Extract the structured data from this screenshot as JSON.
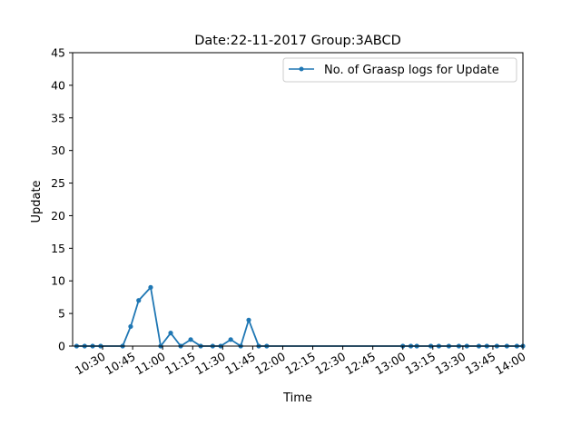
{
  "chart_data": {
    "type": "line",
    "title": "Date:22-11-2017  Group:3ABCD",
    "xlabel": "Time",
    "ylabel": "Update",
    "xlim": [
      "10:15",
      "14:00"
    ],
    "ylim": [
      0,
      45
    ],
    "yticks": [
      0,
      5,
      10,
      15,
      20,
      25,
      30,
      35,
      40,
      45
    ],
    "xticks": [
      "10:30",
      "10:45",
      "11:00",
      "11:15",
      "11:30",
      "11:45",
      "12:00",
      "12:15",
      "12:30",
      "12:45",
      "13:00",
      "13:15",
      "13:30",
      "13:45",
      "14:00"
    ],
    "legend": "top-right",
    "grid": false,
    "colors": {
      "series": "#1f77b4",
      "baseline": "#9b2d8f"
    },
    "series": [
      {
        "name": "No. of Graasp logs for Update",
        "x": [
          "10:17",
          "10:21",
          "10:25",
          "10:29",
          "10:40",
          "10:44",
          "10:48",
          "10:54",
          "10:59",
          "11:04",
          "11:09",
          "11:14",
          "11:19",
          "11:25",
          "11:29",
          "11:34",
          "11:39",
          "11:43",
          "11:48",
          "11:52",
          "13:00",
          "13:04",
          "13:07",
          "13:14",
          "13:18",
          "13:23",
          "13:28",
          "13:32",
          "13:38",
          "13:42",
          "13:47",
          "13:52",
          "13:57",
          "14:00"
        ],
        "y": [
          0,
          0,
          0,
          0,
          0,
          3,
          7,
          9,
          0,
          2,
          0,
          1,
          0,
          0,
          0,
          1,
          0,
          4,
          0,
          0,
          0,
          0,
          0,
          0,
          0,
          0,
          0,
          0,
          0,
          0,
          0,
          0,
          0,
          0
        ]
      }
    ]
  }
}
